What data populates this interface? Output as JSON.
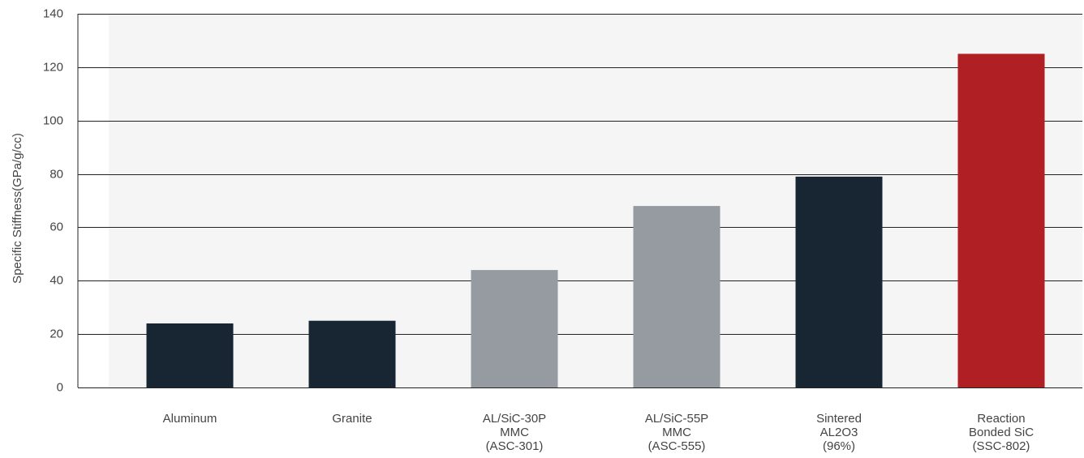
{
  "chart_data": {
    "type": "bar",
    "title": "",
    "xlabel": "",
    "ylabel": "Specific Stiffness(GPa/g/cc)",
    "ylim": [
      0,
      140
    ],
    "yticks": [
      0,
      20,
      40,
      60,
      80,
      100,
      120,
      140
    ],
    "grid": true,
    "categories": [
      [
        "Aluminum"
      ],
      [
        "Granite"
      ],
      [
        "AL/SiC-30P",
        "MMC",
        "(ASC-301)"
      ],
      [
        "AL/SiC-55P",
        "MMC",
        "(ASC-555)"
      ],
      [
        "Sintered",
        "AL2O3",
        "(96%)"
      ],
      [
        "Reaction",
        "Bonded SiC",
        "(SSC-802)"
      ]
    ],
    "values": [
      24,
      25,
      44,
      68,
      79,
      125
    ],
    "bar_colors": [
      "#172632",
      "#172632",
      "#959ba1",
      "#959ba1",
      "#172632",
      "#b01f24"
    ]
  },
  "colors": {
    "plot_background": "#f5f5f5",
    "gridline": "#222222",
    "text": "#444444"
  }
}
